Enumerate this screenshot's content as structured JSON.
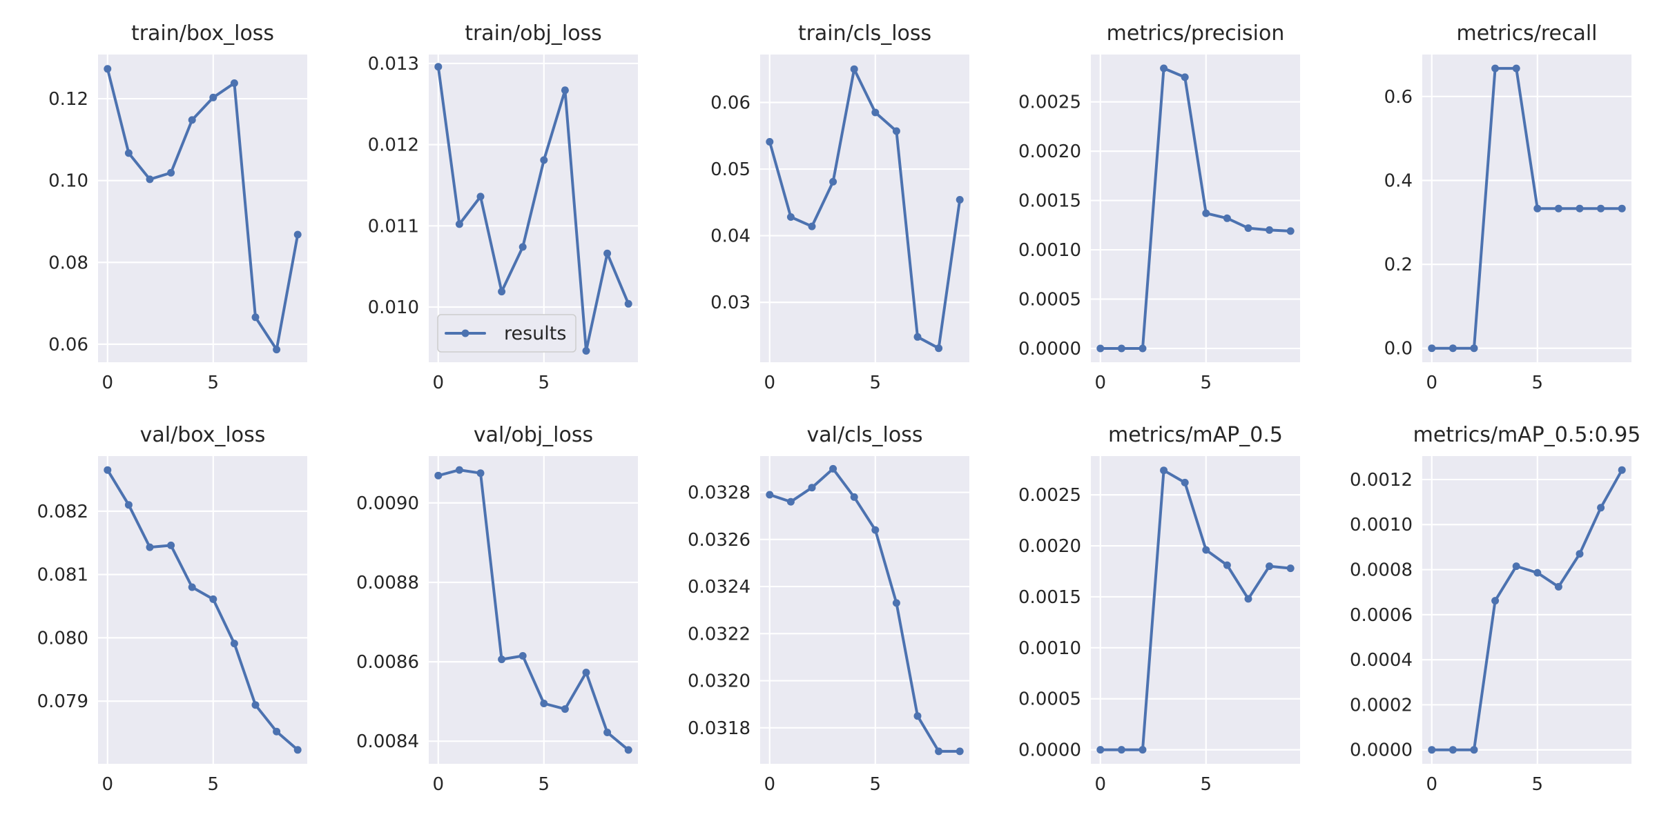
{
  "chart_data": [
    {
      "type": "line",
      "title": "train/box_loss",
      "x": [
        0,
        1,
        2,
        3,
        4,
        5,
        6,
        7,
        8,
        9
      ],
      "series": [
        {
          "values": [
            0.1273,
            0.1067,
            0.1003,
            0.1019,
            0.1148,
            0.1203,
            0.1238,
            0.0666,
            0.0587,
            0.0868
          ]
        }
      ],
      "xlim": [
        -0.45,
        9.45
      ],
      "ylim": [
        0.0556,
        0.1308
      ],
      "xticks": [
        0,
        5
      ],
      "xtick_labels": [
        "0",
        "5"
      ],
      "yticks": [
        0.06,
        0.08,
        0.1,
        0.12
      ],
      "ytick_labels": [
        "0.06",
        "0.08",
        "0.10",
        "0.12"
      ]
    },
    {
      "type": "line",
      "title": "train/obj_loss",
      "x": [
        0,
        1,
        2,
        3,
        4,
        5,
        6,
        7,
        8,
        9
      ],
      "series": [
        {
          "name": "results",
          "values": [
            0.01296,
            0.01102,
            0.01136,
            0.01019,
            0.01074,
            0.01181,
            0.01267,
            0.00946,
            0.01066,
            0.01004
          ]
        }
      ],
      "xlim": [
        -0.45,
        9.45
      ],
      "ylim": [
        0.00932,
        0.01311
      ],
      "xticks": [
        0,
        5
      ],
      "xtick_labels": [
        "0",
        "5"
      ],
      "yticks": [
        0.01,
        0.011,
        0.012,
        0.013
      ],
      "ytick_labels": [
        "0.010",
        "0.011",
        "0.012",
        "0.013"
      ],
      "legend": {
        "position": "lower-left",
        "label": "results"
      }
    },
    {
      "type": "line",
      "title": "train/cls_loss",
      "x": [
        0,
        1,
        2,
        3,
        4,
        5,
        6,
        7,
        8,
        9
      ],
      "series": [
        {
          "values": [
            0.0541,
            0.0428,
            0.0414,
            0.0481,
            0.065,
            0.0585,
            0.0557,
            0.0248,
            0.0231,
            0.0454
          ]
        }
      ],
      "xlim": [
        -0.45,
        9.45
      ],
      "ylim": [
        0.021,
        0.0672
      ],
      "xticks": [
        0,
        5
      ],
      "xtick_labels": [
        "0",
        "5"
      ],
      "yticks": [
        0.03,
        0.04,
        0.05,
        0.06
      ],
      "ytick_labels": [
        "0.03",
        "0.04",
        "0.05",
        "0.06"
      ]
    },
    {
      "type": "line",
      "title": "metrics/precision",
      "x": [
        0,
        1,
        2,
        3,
        4,
        5,
        6,
        7,
        8,
        9
      ],
      "series": [
        {
          "values": [
            0.0,
            0.0,
            0.0,
            0.00284,
            0.00275,
            0.00137,
            0.00132,
            0.00122,
            0.0012,
            0.00119
          ]
        }
      ],
      "xlim": [
        -0.45,
        9.45
      ],
      "ylim": [
        -0.00014,
        0.00298
      ],
      "xticks": [
        0,
        5
      ],
      "xtick_labels": [
        "0",
        "5"
      ],
      "yticks": [
        0.0,
        0.0005,
        0.001,
        0.0015,
        0.002,
        0.0025
      ],
      "ytick_labels": [
        "0.0000",
        "0.0005",
        "0.0010",
        "0.0015",
        "0.0020",
        "0.0025"
      ]
    },
    {
      "type": "line",
      "title": "metrics/recall",
      "x": [
        0,
        1,
        2,
        3,
        4,
        5,
        6,
        7,
        8,
        9
      ],
      "series": [
        {
          "values": [
            0.0,
            0.0,
            0.0,
            0.667,
            0.667,
            0.333,
            0.333,
            0.333,
            0.333,
            0.333
          ]
        }
      ],
      "xlim": [
        -0.45,
        9.45
      ],
      "ylim": [
        -0.0333,
        0.7
      ],
      "xticks": [
        0,
        5
      ],
      "xtick_labels": [
        "0",
        "5"
      ],
      "yticks": [
        0.0,
        0.2,
        0.4,
        0.6
      ],
      "ytick_labels": [
        "0.0",
        "0.2",
        "0.4",
        "0.6"
      ]
    },
    {
      "type": "line",
      "title": "val/box_loss",
      "x": [
        0,
        1,
        2,
        3,
        4,
        5,
        6,
        7,
        8,
        9
      ],
      "series": [
        {
          "values": [
            0.08265,
            0.0821,
            0.08143,
            0.08146,
            0.0808,
            0.08061,
            0.07991,
            0.07894,
            0.07852,
            0.07823
          ]
        }
      ],
      "xlim": [
        -0.45,
        9.45
      ],
      "ylim": [
        0.07801,
        0.08287
      ],
      "xticks": [
        0,
        5
      ],
      "xtick_labels": [
        "0",
        "5"
      ],
      "yticks": [
        0.079,
        0.08,
        0.081,
        0.082
      ],
      "ytick_labels": [
        "0.079",
        "0.080",
        "0.081",
        "0.082"
      ]
    },
    {
      "type": "line",
      "title": "val/obj_loss",
      "x": [
        0,
        1,
        2,
        3,
        4,
        5,
        6,
        7,
        8,
        9
      ],
      "series": [
        {
          "values": [
            0.009069,
            0.009083,
            0.009075,
            0.008606,
            0.008615,
            0.008495,
            0.008481,
            0.008573,
            0.008422,
            0.008378
          ]
        }
      ],
      "xlim": [
        -0.45,
        9.45
      ],
      "ylim": [
        0.008343,
        0.009118
      ],
      "xticks": [
        0,
        5
      ],
      "xtick_labels": [
        "0",
        "5"
      ],
      "yticks": [
        0.0084,
        0.0086,
        0.0088,
        0.009
      ],
      "ytick_labels": [
        "0.0084",
        "0.0086",
        "0.0088",
        "0.0090"
      ]
    },
    {
      "type": "line",
      "title": "val/cls_loss",
      "x": [
        0,
        1,
        2,
        3,
        4,
        5,
        6,
        7,
        8,
        9
      ],
      "series": [
        {
          "values": [
            0.03279,
            0.03276,
            0.03282,
            0.0329,
            0.03278,
            0.03264,
            0.03233,
            0.03185,
            0.0317,
            0.0317
          ]
        }
      ],
      "xlim": [
        -0.45,
        9.45
      ],
      "ylim": [
        0.031647,
        0.032954
      ],
      "xticks": [
        0,
        5
      ],
      "xtick_labels": [
        "0",
        "5"
      ],
      "yticks": [
        0.0318,
        0.032,
        0.0322,
        0.0324,
        0.0326,
        0.0328
      ],
      "ytick_labels": [
        "0.0318",
        "0.0320",
        "0.0322",
        "0.0324",
        "0.0326",
        "0.0328"
      ]
    },
    {
      "type": "line",
      "title": "metrics/mAP_0.5",
      "x": [
        0,
        1,
        2,
        3,
        4,
        5,
        6,
        7,
        8,
        9
      ],
      "series": [
        {
          "values": [
            0.0,
            0.0,
            0.0,
            0.00274,
            0.00262,
            0.00196,
            0.00181,
            0.00148,
            0.0018,
            0.00178
          ]
        }
      ],
      "xlim": [
        -0.45,
        9.45
      ],
      "ylim": [
        -0.000138,
        0.00288
      ],
      "xticks": [
        0,
        5
      ],
      "xtick_labels": [
        "0",
        "5"
      ],
      "yticks": [
        0.0,
        0.0005,
        0.001,
        0.0015,
        0.002,
        0.0025
      ],
      "ytick_labels": [
        "0.0000",
        "0.0005",
        "0.0010",
        "0.0015",
        "0.0020",
        "0.0025"
      ]
    },
    {
      "type": "line",
      "title": "metrics/mAP_0.5:0.95",
      "x": [
        0,
        1,
        2,
        3,
        4,
        5,
        6,
        7,
        8,
        9
      ],
      "series": [
        {
          "values": [
            0.0,
            0.0,
            0.0,
            0.000662,
            0.000815,
            0.000786,
            0.000724,
            0.00087,
            0.001075,
            0.001242
          ]
        }
      ],
      "xlim": [
        -0.45,
        9.45
      ],
      "ylim": [
        -6.21e-05,
        0.001304
      ],
      "xticks": [
        0,
        5
      ],
      "xtick_labels": [
        "0",
        "5"
      ],
      "yticks": [
        0.0,
        0.0002,
        0.0004,
        0.0006,
        0.0008,
        0.001,
        0.0012
      ],
      "ytick_labels": [
        "0.0000",
        "0.0002",
        "0.0004",
        "0.0006",
        "0.0008",
        "0.0010",
        "0.0012"
      ]
    }
  ],
  "colors": {
    "line": "#4c72b0",
    "axes_background": "#eaeaf2",
    "grid": "#ffffff"
  },
  "grid": true
}
